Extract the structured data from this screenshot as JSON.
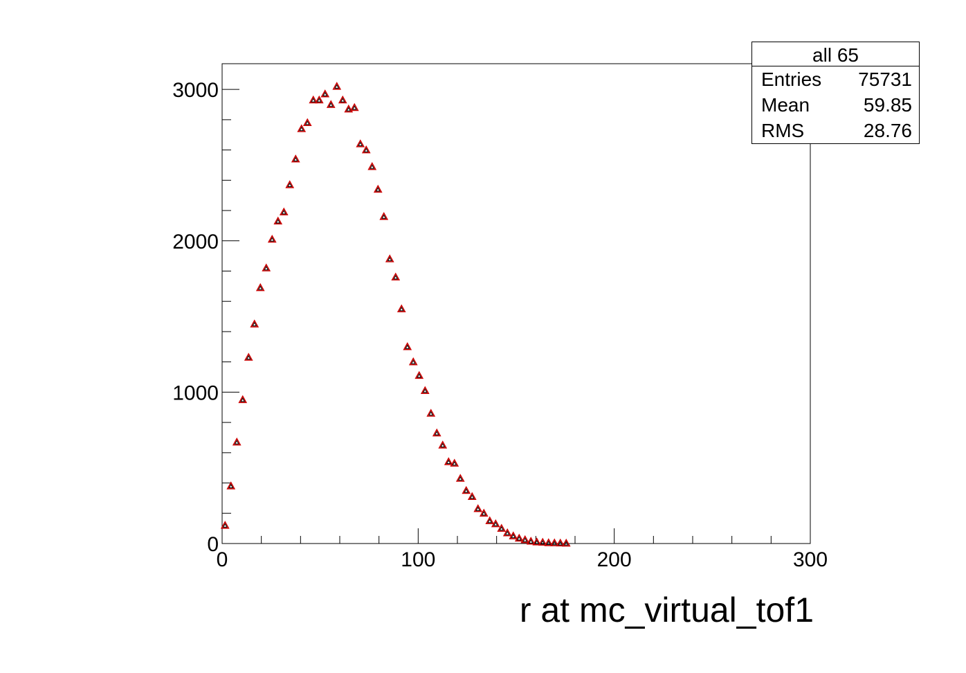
{
  "chart_data": {
    "type": "scatter",
    "title": "",
    "xlabel": "r at mc_virtual_tof1",
    "ylabel": "",
    "xlim": [
      0,
      300
    ],
    "ylim": [
      0,
      3170
    ],
    "grid": false,
    "x_ticks": [
      "0",
      "100",
      "200",
      "300"
    ],
    "y_ticks": [
      "0",
      "1000",
      "2000",
      "3000"
    ],
    "marker": "open-triangle",
    "colors": {
      "marker_outer": "#cc0000",
      "marker_inner": "#000000",
      "frame": "#000000"
    },
    "series": [
      {
        "x": [
          1.5,
          4.5,
          7.5,
          10.5,
          13.5,
          16.5,
          19.5,
          22.5,
          25.5,
          28.5,
          31.5,
          34.5,
          37.5,
          40.5,
          43.5,
          46.5,
          49.5,
          52.5,
          55.5,
          58.5,
          61.5,
          64.5,
          67.5,
          70.5,
          73.5,
          76.5,
          79.5,
          82.5,
          85.5,
          88.5,
          91.5,
          94.5,
          97.5,
          100.5,
          103.5,
          106.5,
          109.5,
          112.5,
          115.5,
          118.5,
          121.5,
          124.5,
          127.5,
          130.5,
          133.5,
          136.5,
          139.5,
          142.5,
          145.5,
          148.5,
          151.5,
          154.5,
          157.5,
          160.5,
          163.5,
          166.5,
          169.5,
          172.5,
          175.5
        ],
        "y": [
          120,
          380,
          670,
          950,
          1230,
          1450,
          1690,
          1820,
          2010,
          2130,
          2190,
          2370,
          2540,
          2740,
          2780,
          2930,
          2930,
          2970,
          2900,
          3020,
          2930,
          2870,
          2880,
          2640,
          2600,
          2490,
          2340,
          2160,
          1880,
          1760,
          1550,
          1300,
          1200,
          1110,
          1010,
          860,
          730,
          650,
          540,
          530,
          430,
          350,
          310,
          230,
          200,
          150,
          130,
          100,
          70,
          50,
          35,
          25,
          15,
          10,
          8,
          5,
          4,
          3,
          2
        ]
      }
    ],
    "stats_box": {
      "title": "all 65",
      "entries_label": "Entries",
      "entries": "75731",
      "mean_label": "Mean",
      "mean": "59.85",
      "rms_label": "RMS",
      "rms": "28.76"
    }
  }
}
